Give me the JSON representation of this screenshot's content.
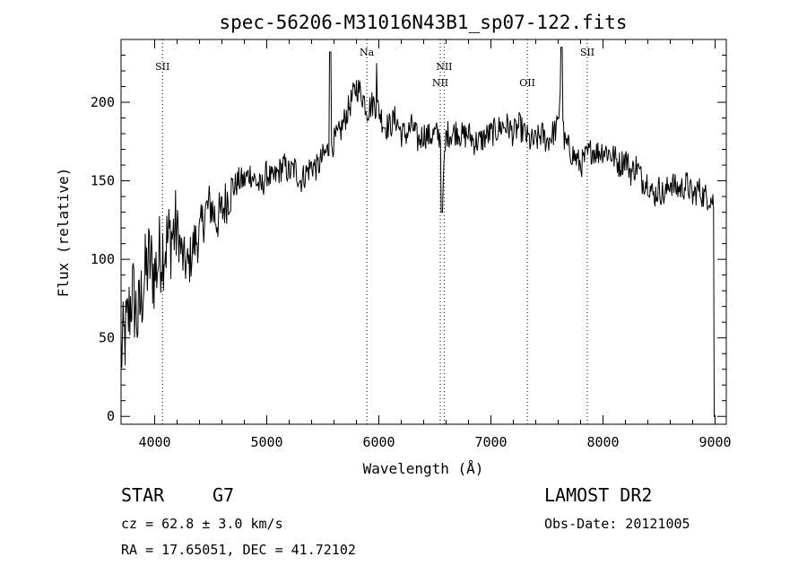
{
  "chart_data": {
    "type": "line",
    "title": "spec-56206-M31016N43B1_sp07-122.fits",
    "xlabel": "Wavelength (Å)",
    "ylabel": "Flux (relative)",
    "xlim": [
      3700,
      9100
    ],
    "ylim": [
      -5,
      240
    ],
    "xticks": [
      4000,
      5000,
      6000,
      7000,
      8000,
      9000
    ],
    "yticks": [
      0,
      50,
      100,
      150,
      200
    ],
    "series": [
      {
        "x": [
          3700,
          3750,
          3800,
          3850,
          3900,
          3950,
          4000,
          4050,
          4100,
          4150,
          4200,
          4250,
          4300,
          4350,
          4400,
          4450,
          4500,
          4550,
          4600,
          4650,
          4700,
          4750,
          4800,
          4850,
          4900,
          4950,
          5000,
          5050,
          5100,
          5150,
          5200,
          5250,
          5300,
          5350,
          5400,
          5450,
          5500,
          5550,
          5600,
          5650,
          5700,
          5750,
          5800,
          5850,
          5900,
          5950,
          6000,
          6050,
          6100,
          6150,
          6200,
          6250,
          6300,
          6350,
          6400,
          6450,
          6500,
          6550,
          6563,
          6600,
          6650,
          6700,
          6750,
          6800,
          6850,
          6900,
          6950,
          7000,
          7050,
          7100,
          7150,
          7200,
          7250,
          7300,
          7350,
          7400,
          7450,
          7500,
          7550,
          7600,
          7630,
          7650,
          7700,
          7750,
          7800,
          7850,
          7900,
          7950,
          8000,
          8050,
          8100,
          8150,
          8200,
          8250,
          8300,
          8350,
          8400,
          8450,
          8500,
          8550,
          8600,
          8650,
          8700,
          8750,
          8800,
          8850,
          8900,
          8950,
          9000
        ],
        "y": [
          40,
          55,
          80,
          60,
          85,
          100,
          90,
          105,
          110,
          115,
          120,
          100,
          95,
          110,
          115,
          130,
          135,
          125,
          130,
          140,
          145,
          150,
          150,
          155,
          150,
          145,
          155,
          150,
          155,
          160,
          155,
          158,
          150,
          155,
          160,
          158,
          165,
          170,
          175,
          180,
          190,
          200,
          210,
          205,
          195,
          200,
          195,
          185,
          185,
          190,
          180,
          180,
          185,
          175,
          180,
          178,
          180,
          178,
          135,
          180,
          180,
          182,
          178,
          180,
          175,
          175,
          178,
          180,
          182,
          185,
          185,
          180,
          185,
          180,
          175,
          175,
          180,
          175,
          180,
          185,
          225,
          175,
          170,
          165,
          160,
          165,
          170,
          168,
          170,
          168,
          165,
          160,
          165,
          155,
          160,
          150,
          150,
          140,
          145,
          140,
          150,
          145,
          145,
          148,
          140,
          145,
          140,
          140,
          135
        ]
      }
    ],
    "lines": [
      {
        "label": "SII",
        "wavelength": 4070
      },
      {
        "label": "Na",
        "wavelength": 5893
      },
      {
        "label": "NII",
        "wavelength": 6548
      },
      {
        "label": "NII",
        "wavelength": 6583
      },
      {
        "label": "OII",
        "wavelength": 7325
      },
      {
        "label": "SII",
        "wavelength": 7860
      }
    ]
  },
  "info": {
    "class": "STAR",
    "subclass": "G7",
    "cz": "cz = 62.8 ± 3.0 km/s",
    "coords": "RA =  17.65051, DEC =  41.72102",
    "survey": "LAMOST DR2",
    "obs_date": "Obs-Date: 20121005"
  }
}
